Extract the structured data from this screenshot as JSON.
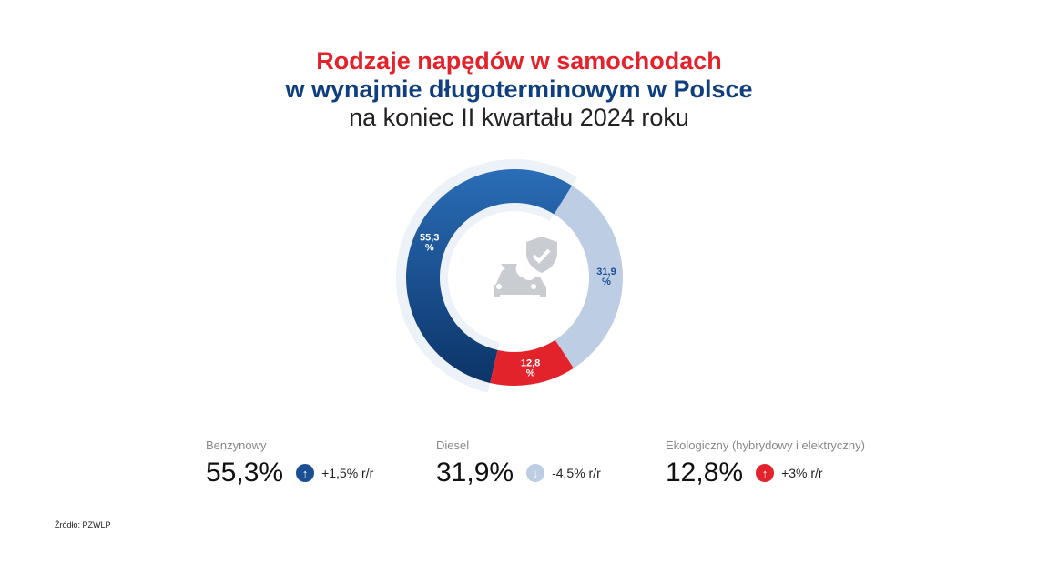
{
  "title": {
    "line1": "Rodzaje napędów w samochodach",
    "line2": "w wynajmie długoterminowym w Polsce",
    "line3": "na koniec II kwartału 2024 roku"
  },
  "chart_data": {
    "type": "pie",
    "title": "Rodzaje napędów w samochodach w wynajmie długoterminowym w Polsce na koniec II kwartału 2024 roku",
    "categories": [
      "Benzynowy",
      "Diesel",
      "Ekologiczny (hybrydowy i elektryczny)"
    ],
    "values": [
      55.3,
      31.9,
      12.8
    ],
    "labels": [
      "55,3\n%",
      "31,9\n%",
      "12,8\n%"
    ],
    "colors": [
      "#1a4f93",
      "#bccde4",
      "#e3232c"
    ],
    "center_icon": "car-shield-check-icon"
  },
  "stats": [
    {
      "label": "Benzynowy",
      "value": "55,3%",
      "change": "+1,5% r/r",
      "direction": "up",
      "color": "#1a4f93"
    },
    {
      "label": "Diesel",
      "value": "31,9%",
      "change": "-4,5% r/r",
      "direction": "down",
      "color": "#bccde4"
    },
    {
      "label": "Ekologiczny (hybrydowy i elektryczny)",
      "value": "12,8%",
      "change": "+3% r/r",
      "direction": "up",
      "color": "#e3232c"
    }
  ],
  "source": "Źródło: PZWLP"
}
